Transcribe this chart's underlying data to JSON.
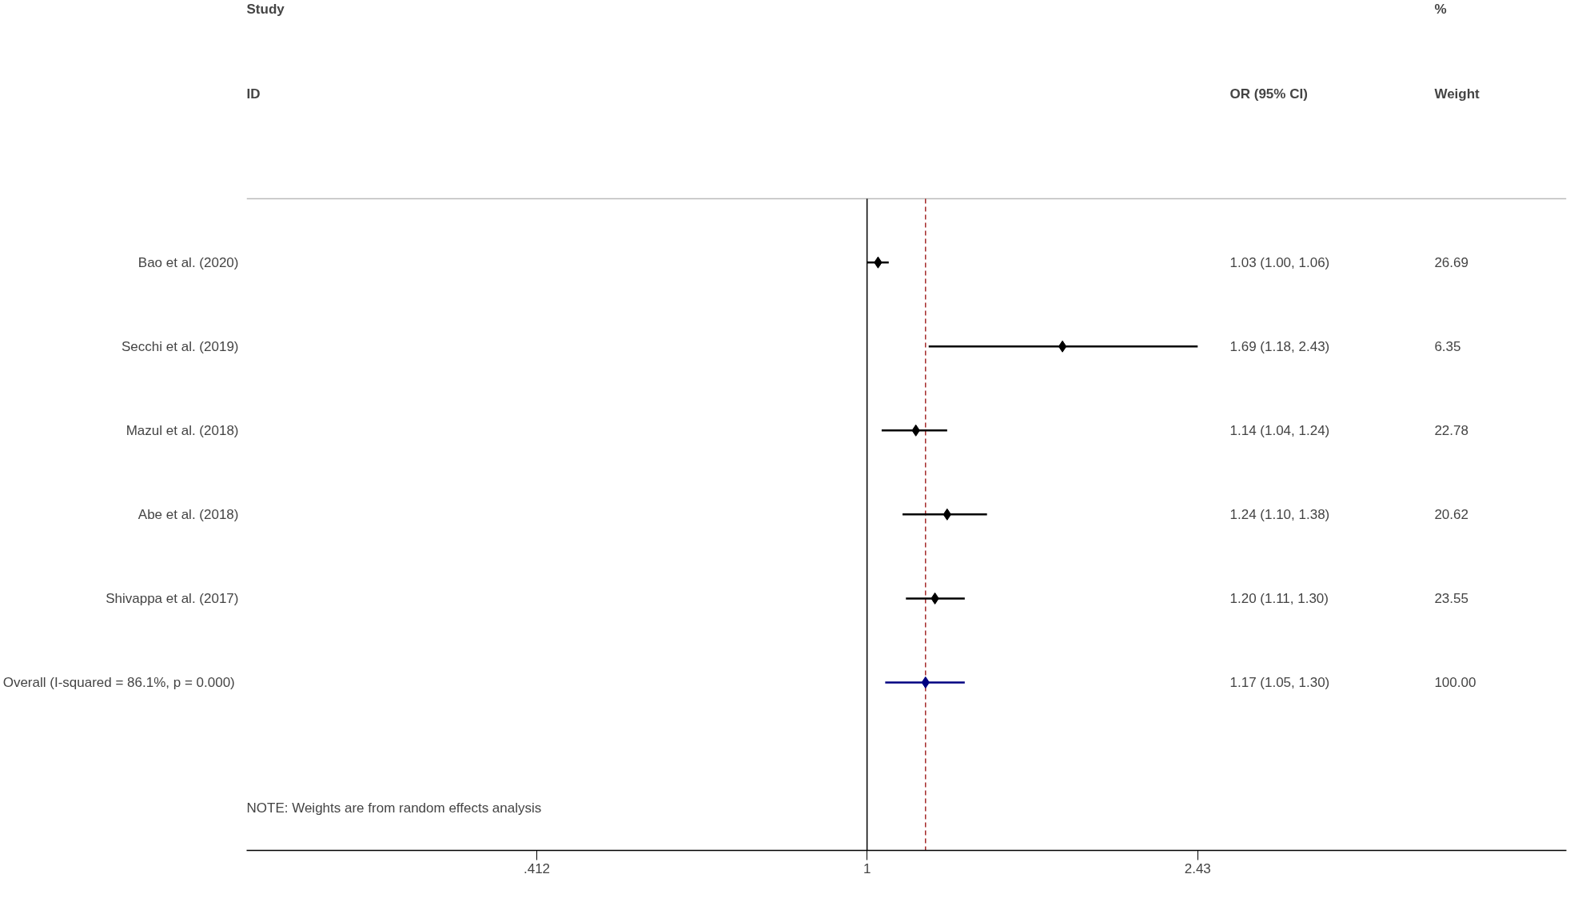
{
  "chart_data": {
    "type": "scatter",
    "orientation": "horizontal",
    "log": "x",
    "grid": false,
    "categories": [
      "Bao et al. (2020)",
      "Secchi et al. (2019)",
      "Mazul et al. (2018)",
      "Abe et al. (2018)",
      "Shivappa et al. (2017)",
      "Overall  (I-squared = 86.1%, p = 0.000)"
    ],
    "xlim": [
      0.189,
      6.54
    ],
    "xticks": [
      {
        "value": 0.412,
        "label": ".412"
      },
      {
        "value": 1,
        "label": "1"
      },
      {
        "value": 2.43,
        "label": "2.43"
      }
    ],
    "series": [
      {
        "color": "#000000",
        "marker": "diamond",
        "values": [
          1.03,
          1.69,
          1.14,
          1.24,
          1.2,
          null
        ],
        "errors": [
          [
            1.0,
            1.06
          ],
          [
            1.18,
            2.43
          ],
          [
            1.04,
            1.24
          ],
          [
            1.1,
            1.38
          ],
          [
            1.11,
            1.3
          ],
          null
        ]
      },
      {
        "color": "#000080",
        "marker": "diamond",
        "values": [
          null,
          null,
          null,
          null,
          null,
          1.17
        ],
        "errors": [
          null,
          null,
          null,
          null,
          null,
          [
            1.05,
            1.3
          ]
        ]
      }
    ],
    "ref_lines": [
      {
        "axis": "x",
        "value": 1,
        "color": "#000000",
        "line_style": "solid"
      },
      {
        "axis": "x",
        "value": 1.17,
        "color": "#a52a2a",
        "line_style": "dashed"
      }
    ],
    "annotations": [
      "Study",
      "ID",
      "OR (95% CI)",
      "%",
      "Weight",
      "1.03 (1.00, 1.06)",
      "1.69 (1.18, 2.43)",
      "1.14 (1.04, 1.24)",
      "1.24 (1.10, 1.38)",
      "1.20 (1.11, 1.30)",
      "1.17 (1.05, 1.30)",
      "26.69",
      "6.35",
      "22.78",
      "20.62",
      "23.55",
      "100.00",
      "NOTE: Weights are from random effects analysis"
    ]
  }
}
